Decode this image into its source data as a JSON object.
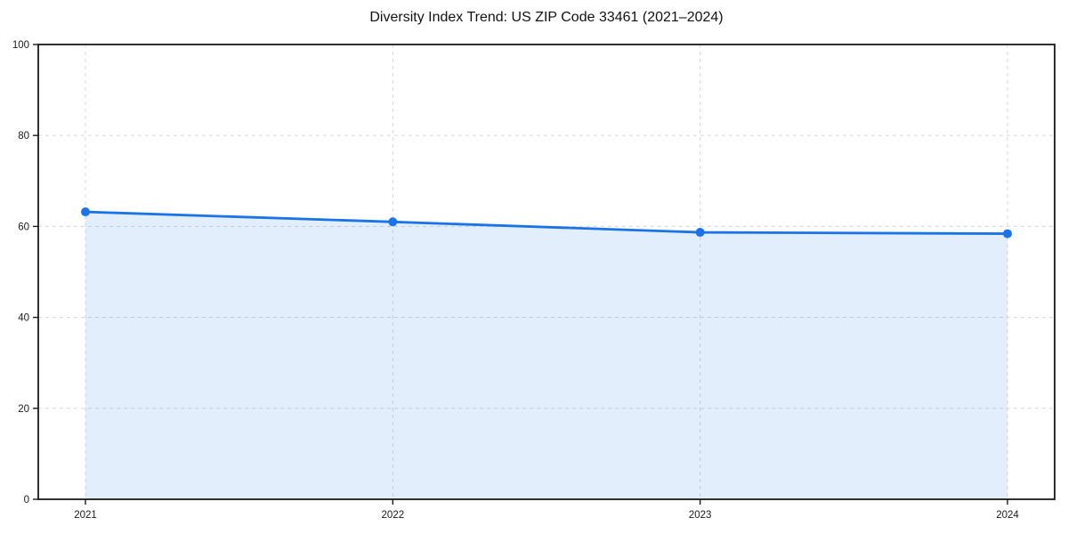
{
  "chart_data": {
    "type": "area",
    "title": "Diversity Index Trend: US ZIP Code 33461 (2021–2024)",
    "categories": [
      "2021",
      "2022",
      "2023",
      "2024"
    ],
    "series": [
      {
        "name": "Diversity Index",
        "values": [
          63.2,
          61.0,
          58.7,
          58.4
        ]
      }
    ],
    "xlabel": "",
    "ylabel": "",
    "ylim": [
      0,
      100
    ],
    "yticks": [
      0,
      20,
      40,
      60,
      80,
      100
    ],
    "grid": true,
    "grid_style": "dashed",
    "legend": false,
    "markers": true,
    "colors": {
      "line": "#1a73e8",
      "marker": "#1a73e8",
      "fill": "rgba(26, 115, 232, 0.12)",
      "grid": "#dbdbdb",
      "spine": "#1a1a1a",
      "text": "#1a1a1a",
      "background": "#ffffff"
    }
  }
}
